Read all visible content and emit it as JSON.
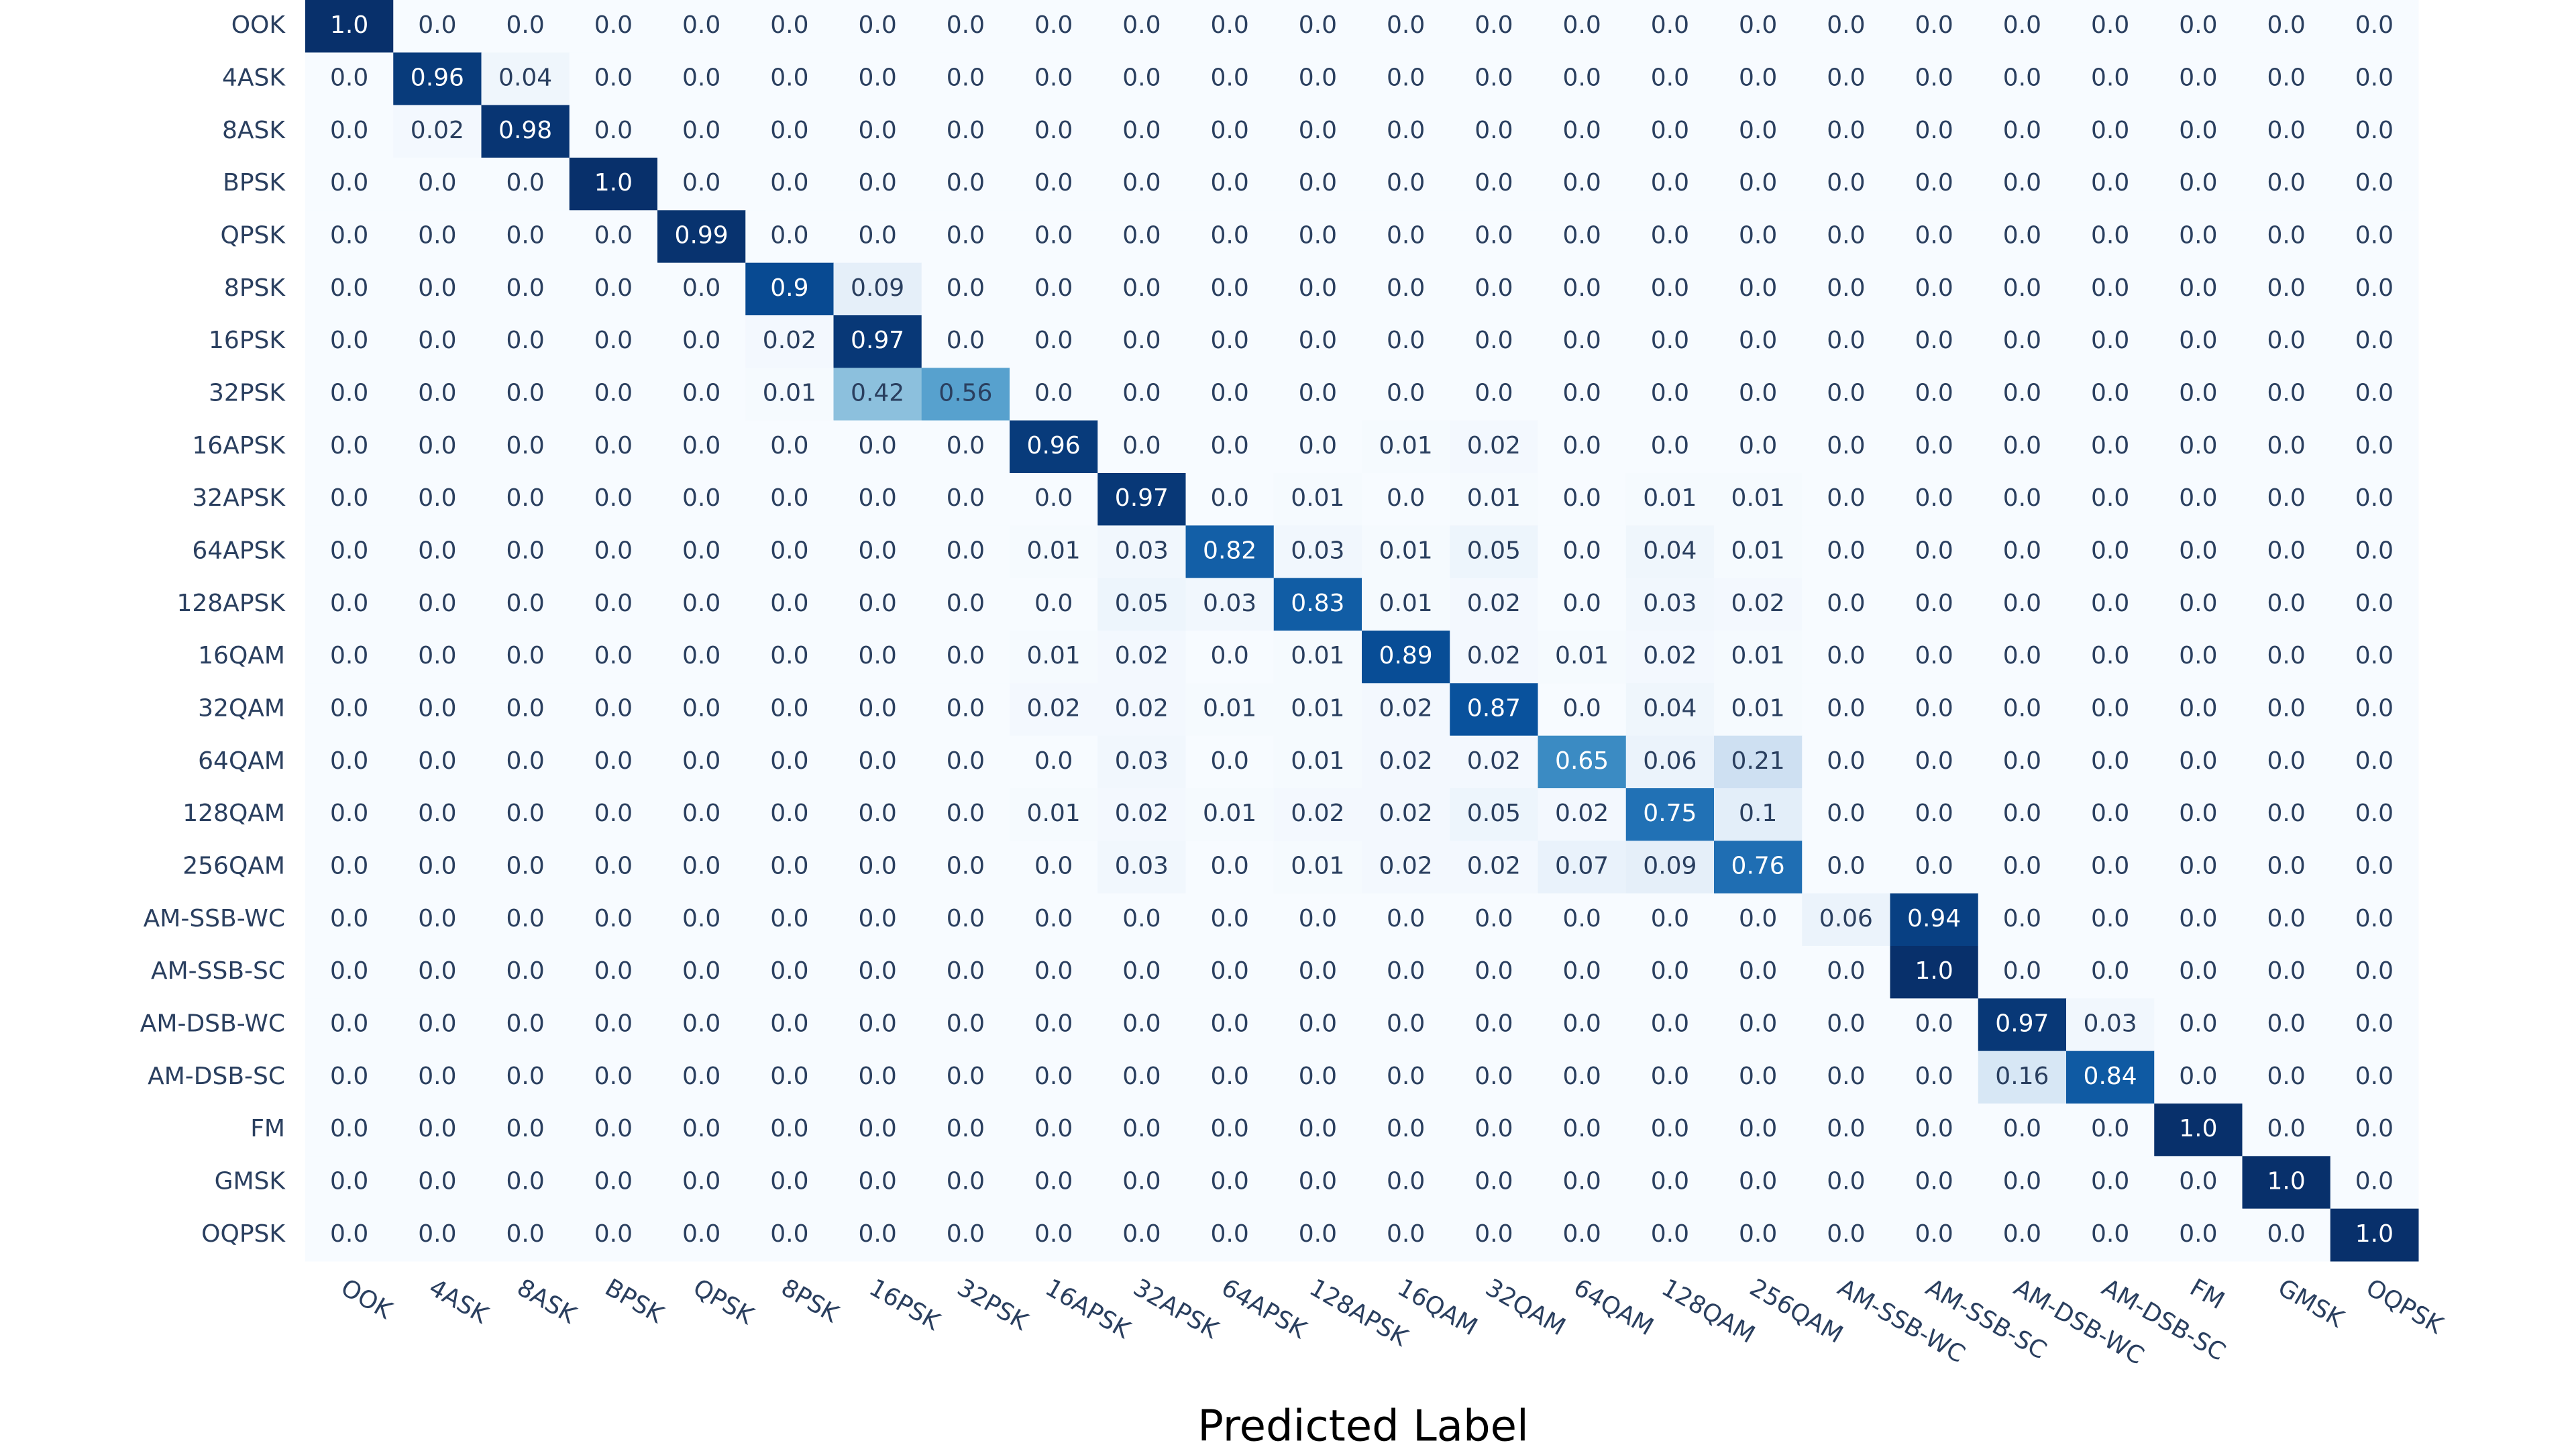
{
  "chart_data": {
    "type": "heatmap",
    "x_label": "Predicted Label",
    "x": [
      "OOK",
      "4ASK",
      "8ASK",
      "BPSK",
      "QPSK",
      "8PSK",
      "16PSK",
      "32PSK",
      "16APSK",
      "32APSK",
      "64APSK",
      "128APSK",
      "16QAM",
      "32QAM",
      "64QAM",
      "128QAM",
      "256QAM",
      "AM-SSB-WC",
      "AM-SSB-SC",
      "AM-DSB-WC",
      "AM-DSB-SC",
      "FM",
      "GMSK",
      "OQPSK"
    ],
    "y": [
      "OOK",
      "4ASK",
      "8ASK",
      "BPSK",
      "QPSK",
      "8PSK",
      "16PSK",
      "32PSK",
      "16APSK",
      "32APSK",
      "64APSK",
      "128APSK",
      "16QAM",
      "32QAM",
      "64QAM",
      "128QAM",
      "256QAM",
      "AM-SSB-WC",
      "AM-SSB-SC",
      "AM-DSB-WC",
      "AM-DSB-SC",
      "FM",
      "GMSK",
      "OQPSK"
    ],
    "zlim": [
      0,
      1
    ],
    "colorscale": [
      "#f7fbff",
      "#deebf7",
      "#c6dbef",
      "#9ecae1",
      "#6baed6",
      "#4292c6",
      "#2171b5",
      "#08519c",
      "#08306b"
    ],
    "z": [
      [
        1,
        0,
        0,
        0,
        0,
        0,
        0,
        0,
        0,
        0,
        0,
        0,
        0,
        0,
        0,
        0,
        0,
        0,
        0,
        0,
        0,
        0,
        0,
        0
      ],
      [
        0,
        0.96,
        0.04,
        0,
        0,
        0,
        0,
        0,
        0,
        0,
        0,
        0,
        0,
        0,
        0,
        0,
        0,
        0,
        0,
        0,
        0,
        0,
        0,
        0
      ],
      [
        0,
        0.02,
        0.98,
        0,
        0,
        0,
        0,
        0,
        0,
        0,
        0,
        0,
        0,
        0,
        0,
        0,
        0,
        0,
        0,
        0,
        0,
        0,
        0,
        0
      ],
      [
        0,
        0,
        0,
        1,
        0,
        0,
        0,
        0,
        0,
        0,
        0,
        0,
        0,
        0,
        0,
        0,
        0,
        0,
        0,
        0,
        0,
        0,
        0,
        0
      ],
      [
        0,
        0,
        0,
        0,
        0.99,
        0,
        0,
        0,
        0,
        0,
        0,
        0,
        0,
        0,
        0,
        0,
        0,
        0,
        0,
        0,
        0,
        0,
        0,
        0
      ],
      [
        0,
        0,
        0,
        0,
        0,
        0.9,
        0.09,
        0,
        0,
        0,
        0,
        0,
        0,
        0,
        0,
        0,
        0,
        0,
        0,
        0,
        0,
        0,
        0,
        0
      ],
      [
        0,
        0,
        0,
        0,
        0,
        0.02,
        0.97,
        0,
        0,
        0,
        0,
        0,
        0,
        0,
        0,
        0,
        0,
        0,
        0,
        0,
        0,
        0,
        0,
        0
      ],
      [
        0,
        0,
        0,
        0,
        0,
        0.01,
        0.42,
        0.56,
        0,
        0,
        0,
        0,
        0,
        0,
        0,
        0,
        0,
        0,
        0,
        0,
        0,
        0,
        0,
        0
      ],
      [
        0,
        0,
        0,
        0,
        0,
        0,
        0,
        0,
        0.96,
        0,
        0,
        0,
        0.01,
        0.02,
        0,
        0,
        0,
        0,
        0,
        0,
        0,
        0,
        0,
        0
      ],
      [
        0,
        0,
        0,
        0,
        0,
        0,
        0,
        0,
        0,
        0.97,
        0,
        0.01,
        0,
        0.01,
        0,
        0.01,
        0.01,
        0,
        0,
        0,
        0,
        0,
        0,
        0
      ],
      [
        0,
        0,
        0,
        0,
        0,
        0,
        0,
        0,
        0.01,
        0.03,
        0.82,
        0.03,
        0.01,
        0.05,
        0,
        0.04,
        0.01,
        0,
        0,
        0,
        0,
        0,
        0,
        0
      ],
      [
        0,
        0,
        0,
        0,
        0,
        0,
        0,
        0,
        0,
        0.05,
        0.03,
        0.83,
        0.01,
        0.02,
        0,
        0.03,
        0.02,
        0,
        0,
        0,
        0,
        0,
        0,
        0
      ],
      [
        0,
        0,
        0,
        0,
        0,
        0,
        0,
        0,
        0.01,
        0.02,
        0,
        0.01,
        0.89,
        0.02,
        0.01,
        0.02,
        0.01,
        0,
        0,
        0,
        0,
        0,
        0,
        0
      ],
      [
        0,
        0,
        0,
        0,
        0,
        0,
        0,
        0,
        0.02,
        0.02,
        0.01,
        0.01,
        0.02,
        0.87,
        0,
        0.04,
        0.01,
        0,
        0,
        0,
        0,
        0,
        0,
        0
      ],
      [
        0,
        0,
        0,
        0,
        0,
        0,
        0,
        0,
        0,
        0.03,
        0,
        0.01,
        0.02,
        0.02,
        0.65,
        0.06,
        0.21,
        0,
        0,
        0,
        0,
        0,
        0,
        0
      ],
      [
        0,
        0,
        0,
        0,
        0,
        0,
        0,
        0,
        0.01,
        0.02,
        0.01,
        0.02,
        0.02,
        0.05,
        0.02,
        0.75,
        0.1,
        0,
        0,
        0,
        0,
        0,
        0,
        0
      ],
      [
        0,
        0,
        0,
        0,
        0,
        0,
        0,
        0,
        0,
        0.03,
        0,
        0.01,
        0.02,
        0.02,
        0.07,
        0.09,
        0.76,
        0,
        0,
        0,
        0,
        0,
        0,
        0
      ],
      [
        0,
        0,
        0,
        0,
        0,
        0,
        0,
        0,
        0,
        0,
        0,
        0,
        0,
        0,
        0,
        0,
        0,
        0.06,
        0.94,
        0,
        0,
        0,
        0,
        0
      ],
      [
        0,
        0,
        0,
        0,
        0,
        0,
        0,
        0,
        0,
        0,
        0,
        0,
        0,
        0,
        0,
        0,
        0,
        0,
        1,
        0,
        0,
        0,
        0,
        0
      ],
      [
        0,
        0,
        0,
        0,
        0,
        0,
        0,
        0,
        0,
        0,
        0,
        0,
        0,
        0,
        0,
        0,
        0,
        0,
        0,
        0.97,
        0.03,
        0,
        0,
        0
      ],
      [
        0,
        0,
        0,
        0,
        0,
        0,
        0,
        0,
        0,
        0,
        0,
        0,
        0,
        0,
        0,
        0,
        0,
        0,
        0,
        0.16,
        0.84,
        0,
        0,
        0
      ],
      [
        0,
        0,
        0,
        0,
        0,
        0,
        0,
        0,
        0,
        0,
        0,
        0,
        0,
        0,
        0,
        0,
        0,
        0,
        0,
        0,
        0,
        1,
        0,
        0
      ],
      [
        0,
        0,
        0,
        0,
        0,
        0,
        0,
        0,
        0,
        0,
        0,
        0,
        0,
        0,
        0,
        0,
        0,
        0,
        0,
        0,
        0,
        0,
        1,
        0
      ],
      [
        0,
        0,
        0,
        0,
        0,
        0,
        0,
        0,
        0,
        0,
        0,
        0,
        0,
        0,
        0,
        0,
        0,
        0,
        0,
        0,
        0,
        0,
        0,
        1
      ]
    ],
    "value_labels": [
      [
        "1.0",
        "0.0",
        "0.0",
        "0.0",
        "0.0",
        "0.0",
        "0.0",
        "0.0",
        "0.0",
        "0.0",
        "0.0",
        "0.0",
        "0.0",
        "0.0",
        "0.0",
        "0.0",
        "0.0",
        "0.0",
        "0.0",
        "0.0",
        "0.0",
        "0.0",
        "0.0",
        "0.0"
      ],
      [
        "0.0",
        "0.96",
        "0.04",
        "0.0",
        "0.0",
        "0.0",
        "0.0",
        "0.0",
        "0.0",
        "0.0",
        "0.0",
        "0.0",
        "0.0",
        "0.0",
        "0.0",
        "0.0",
        "0.0",
        "0.0",
        "0.0",
        "0.0",
        "0.0",
        "0.0",
        "0.0",
        "0.0"
      ],
      [
        "0.0",
        "0.02",
        "0.98",
        "0.0",
        "0.0",
        "0.0",
        "0.0",
        "0.0",
        "0.0",
        "0.0",
        "0.0",
        "0.0",
        "0.0",
        "0.0",
        "0.0",
        "0.0",
        "0.0",
        "0.0",
        "0.0",
        "0.0",
        "0.0",
        "0.0",
        "0.0",
        "0.0"
      ],
      [
        "0.0",
        "0.0",
        "0.0",
        "1.0",
        "0.0",
        "0.0",
        "0.0",
        "0.0",
        "0.0",
        "0.0",
        "0.0",
        "0.0",
        "0.0",
        "0.0",
        "0.0",
        "0.0",
        "0.0",
        "0.0",
        "0.0",
        "0.0",
        "0.0",
        "0.0",
        "0.0",
        "0.0"
      ],
      [
        "0.0",
        "0.0",
        "0.0",
        "0.0",
        "0.99",
        "0.0",
        "0.0",
        "0.0",
        "0.0",
        "0.0",
        "0.0",
        "0.0",
        "0.0",
        "0.0",
        "0.0",
        "0.0",
        "0.0",
        "0.0",
        "0.0",
        "0.0",
        "0.0",
        "0.0",
        "0.0",
        "0.0"
      ],
      [
        "0.0",
        "0.0",
        "0.0",
        "0.0",
        "0.0",
        "0.9",
        "0.09",
        "0.0",
        "0.0",
        "0.0",
        "0.0",
        "0.0",
        "0.0",
        "0.0",
        "0.0",
        "0.0",
        "0.0",
        "0.0",
        "0.0",
        "0.0",
        "0.0",
        "0.0",
        "0.0",
        "0.0"
      ],
      [
        "0.0",
        "0.0",
        "0.0",
        "0.0",
        "0.0",
        "0.02",
        "0.97",
        "0.0",
        "0.0",
        "0.0",
        "0.0",
        "0.0",
        "0.0",
        "0.0",
        "0.0",
        "0.0",
        "0.0",
        "0.0",
        "0.0",
        "0.0",
        "0.0",
        "0.0",
        "0.0",
        "0.0"
      ],
      [
        "0.0",
        "0.0",
        "0.0",
        "0.0",
        "0.0",
        "0.01",
        "0.42",
        "0.56",
        "0.0",
        "0.0",
        "0.0",
        "0.0",
        "0.0",
        "0.0",
        "0.0",
        "0.0",
        "0.0",
        "0.0",
        "0.0",
        "0.0",
        "0.0",
        "0.0",
        "0.0",
        "0.0"
      ],
      [
        "0.0",
        "0.0",
        "0.0",
        "0.0",
        "0.0",
        "0.0",
        "0.0",
        "0.0",
        "0.96",
        "0.0",
        "0.0",
        "0.0",
        "0.01",
        "0.02",
        "0.0",
        "0.0",
        "0.0",
        "0.0",
        "0.0",
        "0.0",
        "0.0",
        "0.0",
        "0.0",
        "0.0"
      ],
      [
        "0.0",
        "0.0",
        "0.0",
        "0.0",
        "0.0",
        "0.0",
        "0.0",
        "0.0",
        "0.0",
        "0.97",
        "0.0",
        "0.01",
        "0.0",
        "0.01",
        "0.0",
        "0.01",
        "0.01",
        "0.0",
        "0.0",
        "0.0",
        "0.0",
        "0.0",
        "0.0",
        "0.0"
      ],
      [
        "0.0",
        "0.0",
        "0.0",
        "0.0",
        "0.0",
        "0.0",
        "0.0",
        "0.0",
        "0.01",
        "0.03",
        "0.82",
        "0.03",
        "0.01",
        "0.05",
        "0.0",
        "0.04",
        "0.01",
        "0.0",
        "0.0",
        "0.0",
        "0.0",
        "0.0",
        "0.0",
        "0.0"
      ],
      [
        "0.0",
        "0.0",
        "0.0",
        "0.0",
        "0.0",
        "0.0",
        "0.0",
        "0.0",
        "0.0",
        "0.05",
        "0.03",
        "0.83",
        "0.01",
        "0.02",
        "0.0",
        "0.03",
        "0.02",
        "0.0",
        "0.0",
        "0.0",
        "0.0",
        "0.0",
        "0.0",
        "0.0"
      ],
      [
        "0.0",
        "0.0",
        "0.0",
        "0.0",
        "0.0",
        "0.0",
        "0.0",
        "0.0",
        "0.01",
        "0.02",
        "0.0",
        "0.01",
        "0.89",
        "0.02",
        "0.01",
        "0.02",
        "0.01",
        "0.0",
        "0.0",
        "0.0",
        "0.0",
        "0.0",
        "0.0",
        "0.0"
      ],
      [
        "0.0",
        "0.0",
        "0.0",
        "0.0",
        "0.0",
        "0.0",
        "0.0",
        "0.0",
        "0.02",
        "0.02",
        "0.01",
        "0.01",
        "0.02",
        "0.87",
        "0.0",
        "0.04",
        "0.01",
        "0.0",
        "0.0",
        "0.0",
        "0.0",
        "0.0",
        "0.0",
        "0.0"
      ],
      [
        "0.0",
        "0.0",
        "0.0",
        "0.0",
        "0.0",
        "0.0",
        "0.0",
        "0.0",
        "0.0",
        "0.03",
        "0.0",
        "0.01",
        "0.02",
        "0.02",
        "0.65",
        "0.06",
        "0.21",
        "0.0",
        "0.0",
        "0.0",
        "0.0",
        "0.0",
        "0.0",
        "0.0"
      ],
      [
        "0.0",
        "0.0",
        "0.0",
        "0.0",
        "0.0",
        "0.0",
        "0.0",
        "0.0",
        "0.01",
        "0.02",
        "0.01",
        "0.02",
        "0.02",
        "0.05",
        "0.02",
        "0.75",
        "0.1",
        "0.0",
        "0.0",
        "0.0",
        "0.0",
        "0.0",
        "0.0",
        "0.0"
      ],
      [
        "0.0",
        "0.0",
        "0.0",
        "0.0",
        "0.0",
        "0.0",
        "0.0",
        "0.0",
        "0.0",
        "0.03",
        "0.0",
        "0.01",
        "0.02",
        "0.02",
        "0.07",
        "0.09",
        "0.76",
        "0.0",
        "0.0",
        "0.0",
        "0.0",
        "0.0",
        "0.0",
        "0.0"
      ],
      [
        "0.0",
        "0.0",
        "0.0",
        "0.0",
        "0.0",
        "0.0",
        "0.0",
        "0.0",
        "0.0",
        "0.0",
        "0.0",
        "0.0",
        "0.0",
        "0.0",
        "0.0",
        "0.0",
        "0.0",
        "0.06",
        "0.94",
        "0.0",
        "0.0",
        "0.0",
        "0.0",
        "0.0"
      ],
      [
        "0.0",
        "0.0",
        "0.0",
        "0.0",
        "0.0",
        "0.0",
        "0.0",
        "0.0",
        "0.0",
        "0.0",
        "0.0",
        "0.0",
        "0.0",
        "0.0",
        "0.0",
        "0.0",
        "0.0",
        "0.0",
        "1.0",
        "0.0",
        "0.0",
        "0.0",
        "0.0",
        "0.0"
      ],
      [
        "0.0",
        "0.0",
        "0.0",
        "0.0",
        "0.0",
        "0.0",
        "0.0",
        "0.0",
        "0.0",
        "0.0",
        "0.0",
        "0.0",
        "0.0",
        "0.0",
        "0.0",
        "0.0",
        "0.0",
        "0.0",
        "0.0",
        "0.97",
        "0.03",
        "0.0",
        "0.0",
        "0.0"
      ],
      [
        "0.0",
        "0.0",
        "0.0",
        "0.0",
        "0.0",
        "0.0",
        "0.0",
        "0.0",
        "0.0",
        "0.0",
        "0.0",
        "0.0",
        "0.0",
        "0.0",
        "0.0",
        "0.0",
        "0.0",
        "0.0",
        "0.0",
        "0.16",
        "0.84",
        "0.0",
        "0.0",
        "0.0"
      ],
      [
        "0.0",
        "0.0",
        "0.0",
        "0.0",
        "0.0",
        "0.0",
        "0.0",
        "0.0",
        "0.0",
        "0.0",
        "0.0",
        "0.0",
        "0.0",
        "0.0",
        "0.0",
        "0.0",
        "0.0",
        "0.0",
        "0.0",
        "0.0",
        "0.0",
        "1.0",
        "0.0",
        "0.0"
      ],
      [
        "0.0",
        "0.0",
        "0.0",
        "0.0",
        "0.0",
        "0.0",
        "0.0",
        "0.0",
        "0.0",
        "0.0",
        "0.0",
        "0.0",
        "0.0",
        "0.0",
        "0.0",
        "0.0",
        "0.0",
        "0.0",
        "0.0",
        "0.0",
        "0.0",
        "0.0",
        "1.0",
        "0.0"
      ],
      [
        "0.0",
        "0.0",
        "0.0",
        "0.0",
        "0.0",
        "0.0",
        "0.0",
        "0.0",
        "0.0",
        "0.0",
        "0.0",
        "0.0",
        "0.0",
        "0.0",
        "0.0",
        "0.0",
        "0.0",
        "0.0",
        "0.0",
        "0.0",
        "0.0",
        "0.0",
        "0.0",
        "1.0"
      ]
    ]
  }
}
